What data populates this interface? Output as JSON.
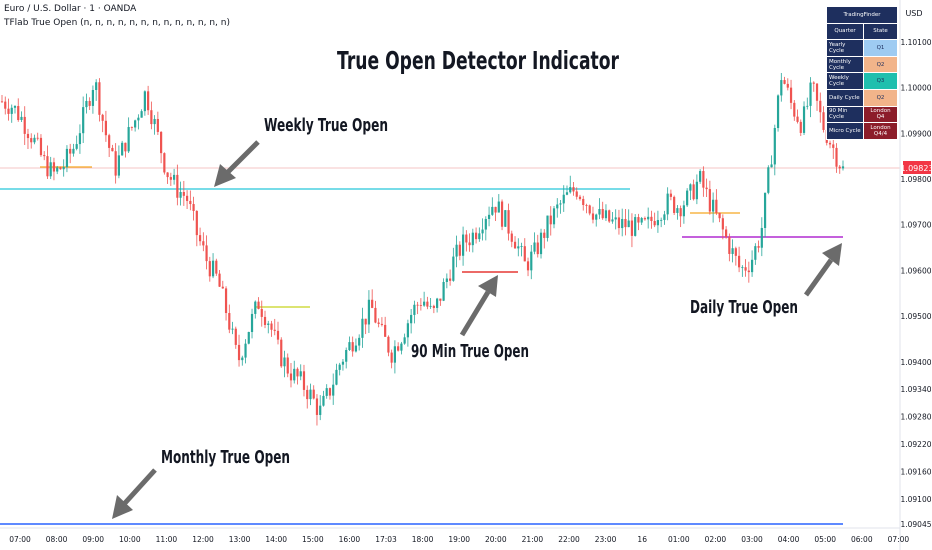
{
  "header": {
    "symbol_line": "Euro / U.S. Dollar · 1 · OANDA",
    "indicator_line": "TFlab True Open (n, n, n, n, n, n, n, n, n, n, n, n, n)",
    "currency": "USD"
  },
  "title": "True Open Detector Indicator",
  "annotations": {
    "weekly": "Weekly True Open",
    "monthly": "Monthly True Open",
    "min90": "90 Min True Open",
    "daily": "Daily True Open"
  },
  "panel": {
    "title": "TradingFinder",
    "col_quarter": "Quarter",
    "col_state": "State",
    "rows": [
      {
        "label": "Yearly Cycle",
        "state": "Q1",
        "color": "#9ecbf2",
        "text": "#1e2f5e"
      },
      {
        "label": "Monthly Cycle",
        "state": "Q2",
        "color": "#f2b48a",
        "text": "#1e2f5e"
      },
      {
        "label": "Weekly Cycle",
        "state": "Q3",
        "color": "#1fbfae",
        "text": "#1e2f5e"
      },
      {
        "label": "Daily Cycle",
        "state": "Q2",
        "color": "#f2b48a",
        "text": "#1e2f5e"
      },
      {
        "label": "90 Min Cycle",
        "state": "London Q4",
        "color": "#8c1d2a",
        "text": "#ffffff"
      },
      {
        "label": "Micro Cycle",
        "state": "London Q4/4",
        "color": "#8c1d2a",
        "text": "#ffffff"
      }
    ]
  },
  "chart_data": {
    "type": "line",
    "title": "True Open Detector Indicator",
    "xlabel": "",
    "ylabel": "",
    "ylim": [
      1.0904,
      1.1016
    ],
    "x_ticks": [
      "07:00",
      "08:00",
      "09:00",
      "10:00",
      "11:00",
      "12:00",
      "13:00",
      "14:00",
      "15:00",
      "16:00",
      "17:03",
      "18:00",
      "19:00",
      "20:00",
      "21:00",
      "22:00",
      "23:00",
      "16",
      "01:00",
      "02:00",
      "03:00",
      "04:00",
      "05:00",
      "06:00",
      "07:00"
    ],
    "y_ticks": [
      "1.10100",
      "1.10000",
      "1.09900",
      "1.09800",
      "1.09700",
      "1.09600",
      "1.09500",
      "1.09400",
      "1.09340",
      "1.09280",
      "1.09220",
      "1.09160",
      "1.09100",
      "1.09045"
    ],
    "last_price": "1.09823",
    "series": [
      {
        "values": [
          1.0997,
          1.0996,
          1.0993,
          1.0989,
          1.0984,
          1.0981,
          1.0983,
          1.0987,
          1.0994,
          1.1002,
          1.0991,
          1.0982,
          1.0988,
          1.0993,
          1.0999,
          1.0991,
          1.0982,
          1.0978,
          1.0976,
          1.0968,
          1.0962,
          1.0958,
          1.095,
          1.094,
          1.0947,
          1.0953,
          1.0949,
          1.0942,
          1.0938,
          1.0936,
          1.0933,
          1.0929,
          1.0934,
          1.094,
          1.0944,
          1.0948,
          1.0952,
          1.0946,
          1.0942,
          1.0946,
          1.0951,
          1.0954,
          1.095,
          1.0956,
          1.0962,
          1.0966,
          1.0968,
          1.0972,
          1.0975,
          1.0971,
          1.0967,
          1.0961,
          1.0964,
          1.0969,
          1.0973,
          1.0976,
          1.0978,
          1.0975,
          1.0972,
          1.0971,
          1.097,
          1.097,
          1.0969,
          1.097,
          1.0973,
          1.0975,
          1.0974,
          1.0976,
          1.098,
          1.0975,
          1.097,
          1.0965,
          1.096,
          1.0962,
          1.0968,
          1.0985,
          1.1003,
          1.0996,
          1.0992,
          1.1,
          1.0992,
          1.0987,
          1.0982
        ]
      }
    ],
    "levels": [
      {
        "name": "Weekly True Open",
        "value": 1.09777,
        "color": "#26c6da"
      },
      {
        "name": "Monthly True Open",
        "value": 1.09045,
        "color": "#2962ff"
      },
      {
        "name": "Daily True Open",
        "value": 1.0968,
        "color": "#b02bd1"
      },
      {
        "name": "90 Min True Open",
        "value": 1.09612,
        "color": "#e53935"
      }
    ],
    "grid": false,
    "legend": "none"
  },
  "colors": {
    "up": "#26a69a",
    "down": "#ef5350",
    "price_tag": "#f23645",
    "arrow": "#6b6b6b"
  }
}
